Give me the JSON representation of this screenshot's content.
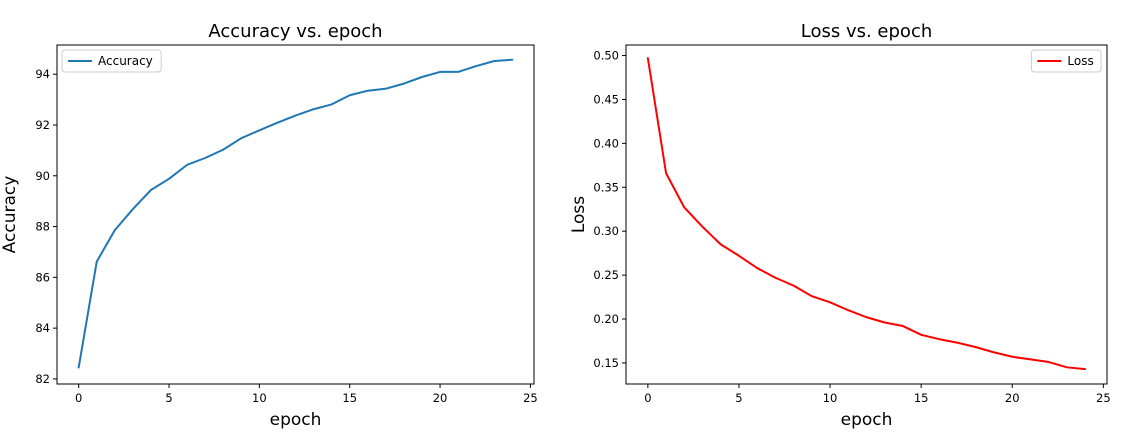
{
  "chart_data": [
    {
      "type": "line",
      "title": "Accuracy vs. epoch",
      "xlabel": "epoch",
      "ylabel": "Accuracy",
      "xlim": [
        -1.2,
        25.2
      ],
      "ylim": [
        81.8,
        95.15
      ],
      "xticks": [
        0,
        5,
        10,
        15,
        20,
        25
      ],
      "yticks": [
        82,
        84,
        86,
        88,
        90,
        92,
        94
      ],
      "ytick_decimals": 0,
      "grid": false,
      "legend_position": "upper left",
      "series": [
        {
          "name": "Accuracy",
          "color": "#1f77b4",
          "x": [
            0,
            1,
            2,
            3,
            4,
            5,
            6,
            7,
            8,
            9,
            10,
            11,
            12,
            13,
            14,
            15,
            16,
            17,
            18,
            19,
            20,
            21,
            22,
            23,
            24
          ],
          "y": [
            82.45,
            86.62,
            87.86,
            88.69,
            89.44,
            89.88,
            90.43,
            90.7,
            91.03,
            91.48,
            91.79,
            92.09,
            92.37,
            92.62,
            92.81,
            93.17,
            93.35,
            93.43,
            93.63,
            93.89,
            94.09,
            94.09,
            94.32,
            94.52,
            94.57
          ]
        }
      ]
    },
    {
      "type": "line",
      "title": "Loss vs. epoch",
      "xlabel": "epoch",
      "ylabel": "Loss",
      "xlim": [
        -1.2,
        25.2
      ],
      "ylim": [
        0.126,
        0.512
      ],
      "xticks": [
        0,
        5,
        10,
        15,
        20,
        25
      ],
      "yticks": [
        0.15,
        0.2,
        0.25,
        0.3,
        0.35,
        0.4,
        0.45,
        0.5
      ],
      "ytick_decimals": 2,
      "grid": false,
      "legend_position": "upper right",
      "series": [
        {
          "name": "Loss",
          "color": "#ff0000",
          "x": [
            0,
            1,
            2,
            3,
            4,
            5,
            6,
            7,
            8,
            9,
            10,
            11,
            12,
            13,
            14,
            15,
            16,
            17,
            18,
            19,
            20,
            21,
            22,
            23,
            24
          ],
          "y": [
            0.497,
            0.366,
            0.327,
            0.305,
            0.285,
            0.272,
            0.258,
            0.247,
            0.238,
            0.226,
            0.219,
            0.21,
            0.202,
            0.196,
            0.192,
            0.182,
            0.177,
            0.173,
            0.168,
            0.162,
            0.157,
            0.154,
            0.151,
            0.145,
            0.143
          ]
        }
      ]
    }
  ]
}
